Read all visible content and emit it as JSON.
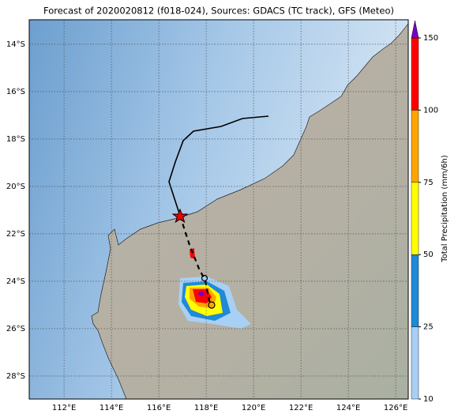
{
  "chart_data": {
    "type": "map",
    "title": "Forecast of 2020020812 (f018-024), Sources: GDACS (TC track), GFS (Meteo)",
    "xlim": [
      110.53,
      126.53
    ],
    "ylim": [
      -28.97,
      -12.97
    ],
    "xticks": [
      {
        "value": 112,
        "label": "112°E"
      },
      {
        "value": 114,
        "label": "114°E"
      },
      {
        "value": 116,
        "label": "116°E"
      },
      {
        "value": 118,
        "label": "118°E"
      },
      {
        "value": 120,
        "label": "120°E"
      },
      {
        "value": 122,
        "label": "122°E"
      },
      {
        "value": 124,
        "label": "124°E"
      },
      {
        "value": 126,
        "label": "126°E"
      }
    ],
    "yticks": [
      {
        "value": -14,
        "label": "14°S"
      },
      {
        "value": -16,
        "label": "16°S"
      },
      {
        "value": -18,
        "label": "18°S"
      },
      {
        "value": -20,
        "label": "20°S"
      },
      {
        "value": -22,
        "label": "22°S"
      },
      {
        "value": -24,
        "label": "24°S"
      },
      {
        "value": -26,
        "label": "26°S"
      },
      {
        "value": -28,
        "label": "28°S"
      }
    ],
    "grid": true,
    "colorbar": {
      "label": "Total Precipitation (mm/6h)",
      "ticks": [
        10,
        25,
        50,
        75,
        100,
        150
      ],
      "colors": [
        "#a8d0f5",
        "#1e8ad8",
        "#ffff00",
        "#ffa500",
        "#ff0000"
      ],
      "extend_color": "#7a00c8"
    }
  }
}
